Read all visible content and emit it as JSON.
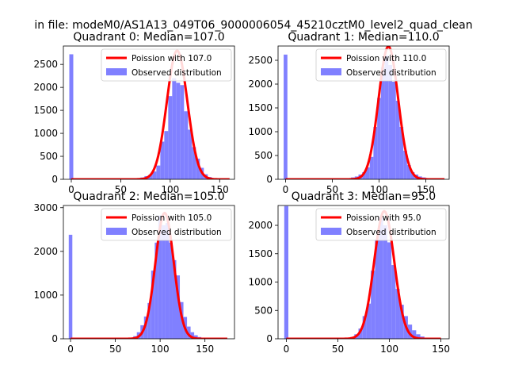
{
  "suptitle": "in file: modeM0/AS1A13_049T06_9000006054_45210cztM0_level2_quad_clean",
  "colors": {
    "histogram": "#8080ff",
    "poisson": "#ff0000"
  },
  "chart_data": [
    {
      "type": "bar",
      "title": "Quadrant 0: Median=107.0",
      "xlim": [
        -8,
        165
      ],
      "ylim": [
        0,
        2900
      ],
      "xticks": [
        0,
        50,
        100,
        150
      ],
      "yticks": [
        0,
        500,
        1000,
        1500,
        2000,
        2500
      ],
      "legend_placement": "top-right",
      "series": [
        {
          "name": "Observed distribution",
          "kind": "histogram",
          "bin_width": 4,
          "bins": [
            {
              "x": 0,
              "y": 2720
            },
            {
              "x": 60,
              "y": 5
            },
            {
              "x": 64,
              "y": 10
            },
            {
              "x": 68,
              "y": 20
            },
            {
              "x": 72,
              "y": 40
            },
            {
              "x": 76,
              "y": 70
            },
            {
              "x": 80,
              "y": 100
            },
            {
              "x": 84,
              "y": 170
            },
            {
              "x": 88,
              "y": 300
            },
            {
              "x": 92,
              "y": 820
            },
            {
              "x": 96,
              "y": 1050
            },
            {
              "x": 100,
              "y": 1810
            },
            {
              "x": 104,
              "y": 2200
            },
            {
              "x": 108,
              "y": 2100
            },
            {
              "x": 112,
              "y": 2050
            },
            {
              "x": 116,
              "y": 1480
            },
            {
              "x": 120,
              "y": 1080
            },
            {
              "x": 124,
              "y": 700
            },
            {
              "x": 128,
              "y": 450
            },
            {
              "x": 132,
              "y": 250
            },
            {
              "x": 136,
              "y": 110
            },
            {
              "x": 140,
              "y": 50
            },
            {
              "x": 144,
              "y": 20
            },
            {
              "x": 148,
              "y": 10
            },
            {
              "x": 152,
              "y": 5
            }
          ]
        },
        {
          "name": "Poission with 107.0",
          "kind": "line",
          "lambda": 107.0,
          "peak": 2800,
          "x_range": [
            0,
            160
          ]
        }
      ]
    },
    {
      "type": "bar",
      "title": "Quadrant 1: Median=110.0",
      "xlim": [
        -8,
        175
      ],
      "ylim": [
        0,
        2800
      ],
      "xticks": [
        0,
        50,
        100,
        150
      ],
      "yticks": [
        0,
        500,
        1000,
        1500,
        2000,
        2500
      ],
      "legend_placement": "top-right",
      "series": [
        {
          "name": "Observed distribution",
          "kind": "histogram",
          "bin_width": 4,
          "bins": [
            {
              "x": 0,
              "y": 2620
            },
            {
              "x": 60,
              "y": 5
            },
            {
              "x": 64,
              "y": 10
            },
            {
              "x": 68,
              "y": 20
            },
            {
              "x": 72,
              "y": 40
            },
            {
              "x": 76,
              "y": 60
            },
            {
              "x": 80,
              "y": 100
            },
            {
              "x": 84,
              "y": 150
            },
            {
              "x": 88,
              "y": 250
            },
            {
              "x": 92,
              "y": 470
            },
            {
              "x": 96,
              "y": 1100
            },
            {
              "x": 100,
              "y": 1710
            },
            {
              "x": 104,
              "y": 2350
            },
            {
              "x": 108,
              "y": 2600
            },
            {
              "x": 112,
              "y": 2400
            },
            {
              "x": 116,
              "y": 2050
            },
            {
              "x": 120,
              "y": 1650
            },
            {
              "x": 124,
              "y": 1100
            },
            {
              "x": 128,
              "y": 600
            },
            {
              "x": 132,
              "y": 300
            },
            {
              "x": 136,
              "y": 150
            },
            {
              "x": 140,
              "y": 100
            },
            {
              "x": 144,
              "y": 60
            },
            {
              "x": 148,
              "y": 40
            },
            {
              "x": 152,
              "y": 20
            },
            {
              "x": 156,
              "y": 10
            },
            {
              "x": 160,
              "y": 5
            }
          ]
        },
        {
          "name": "Poission with 110.0",
          "kind": "line",
          "lambda": 110.0,
          "peak": 2790,
          "x_range": [
            0,
            170
          ]
        }
      ]
    },
    {
      "type": "bar",
      "title": "Quadrant 2: Median=105.0",
      "xlim": [
        -8,
        183
      ],
      "ylim": [
        0,
        3050
      ],
      "xticks": [
        0,
        50,
        100,
        150
      ],
      "yticks": [
        0,
        1000,
        2000,
        3000
      ],
      "legend_placement": "top-right",
      "series": [
        {
          "name": "Observed distribution",
          "kind": "histogram",
          "bin_width": 4,
          "bins": [
            {
              "x": 0,
              "y": 2380
            },
            {
              "x": 60,
              "y": 5
            },
            {
              "x": 64,
              "y": 10
            },
            {
              "x": 68,
              "y": 20
            },
            {
              "x": 72,
              "y": 60
            },
            {
              "x": 76,
              "y": 150
            },
            {
              "x": 80,
              "y": 310
            },
            {
              "x": 84,
              "y": 510
            },
            {
              "x": 88,
              "y": 820
            },
            {
              "x": 92,
              "y": 1560
            },
            {
              "x": 96,
              "y": 2200
            },
            {
              "x": 100,
              "y": 2820
            },
            {
              "x": 104,
              "y": 2600
            },
            {
              "x": 108,
              "y": 2650
            },
            {
              "x": 112,
              "y": 2200
            },
            {
              "x": 116,
              "y": 1800
            },
            {
              "x": 120,
              "y": 1450
            },
            {
              "x": 124,
              "y": 840
            },
            {
              "x": 128,
              "y": 500
            },
            {
              "x": 132,
              "y": 280
            },
            {
              "x": 136,
              "y": 150
            },
            {
              "x": 140,
              "y": 80
            },
            {
              "x": 144,
              "y": 40
            },
            {
              "x": 148,
              "y": 20
            },
            {
              "x": 152,
              "y": 10
            },
            {
              "x": 156,
              "y": 5
            }
          ]
        },
        {
          "name": "Poission with 105.0",
          "kind": "line",
          "lambda": 105.0,
          "peak": 2880,
          "x_range": [
            0,
            175
          ]
        }
      ]
    },
    {
      "type": "bar",
      "title": "Quadrant 3: Median=95.0",
      "xlim": [
        -8,
        158
      ],
      "ylim": [
        0,
        2350
      ],
      "xticks": [
        0,
        50,
        100,
        150
      ],
      "yticks": [
        0,
        500,
        1000,
        1500,
        2000
      ],
      "legend_placement": "top-right",
      "series": [
        {
          "name": "Observed distribution",
          "kind": "histogram",
          "bin_width": 4,
          "bins": [
            {
              "x": 0,
              "y": 2340
            },
            {
              "x": 56,
              "y": 5
            },
            {
              "x": 60,
              "y": 10
            },
            {
              "x": 64,
              "y": 30
            },
            {
              "x": 68,
              "y": 80
            },
            {
              "x": 72,
              "y": 180
            },
            {
              "x": 76,
              "y": 400
            },
            {
              "x": 80,
              "y": 620
            },
            {
              "x": 84,
              "y": 1200
            },
            {
              "x": 88,
              "y": 1750
            },
            {
              "x": 92,
              "y": 2150
            },
            {
              "x": 96,
              "y": 2000
            },
            {
              "x": 100,
              "y": 1700
            },
            {
              "x": 104,
              "y": 1300
            },
            {
              "x": 108,
              "y": 880
            },
            {
              "x": 112,
              "y": 600
            },
            {
              "x": 116,
              "y": 400
            },
            {
              "x": 120,
              "y": 250
            },
            {
              "x": 124,
              "y": 150
            },
            {
              "x": 128,
              "y": 80
            },
            {
              "x": 132,
              "y": 40
            },
            {
              "x": 136,
              "y": 20
            },
            {
              "x": 140,
              "y": 10
            }
          ]
        },
        {
          "name": "Poission with 95.0",
          "kind": "line",
          "lambda": 95.0,
          "peak": 2250,
          "x_range": [
            0,
            150
          ]
        }
      ]
    }
  ]
}
